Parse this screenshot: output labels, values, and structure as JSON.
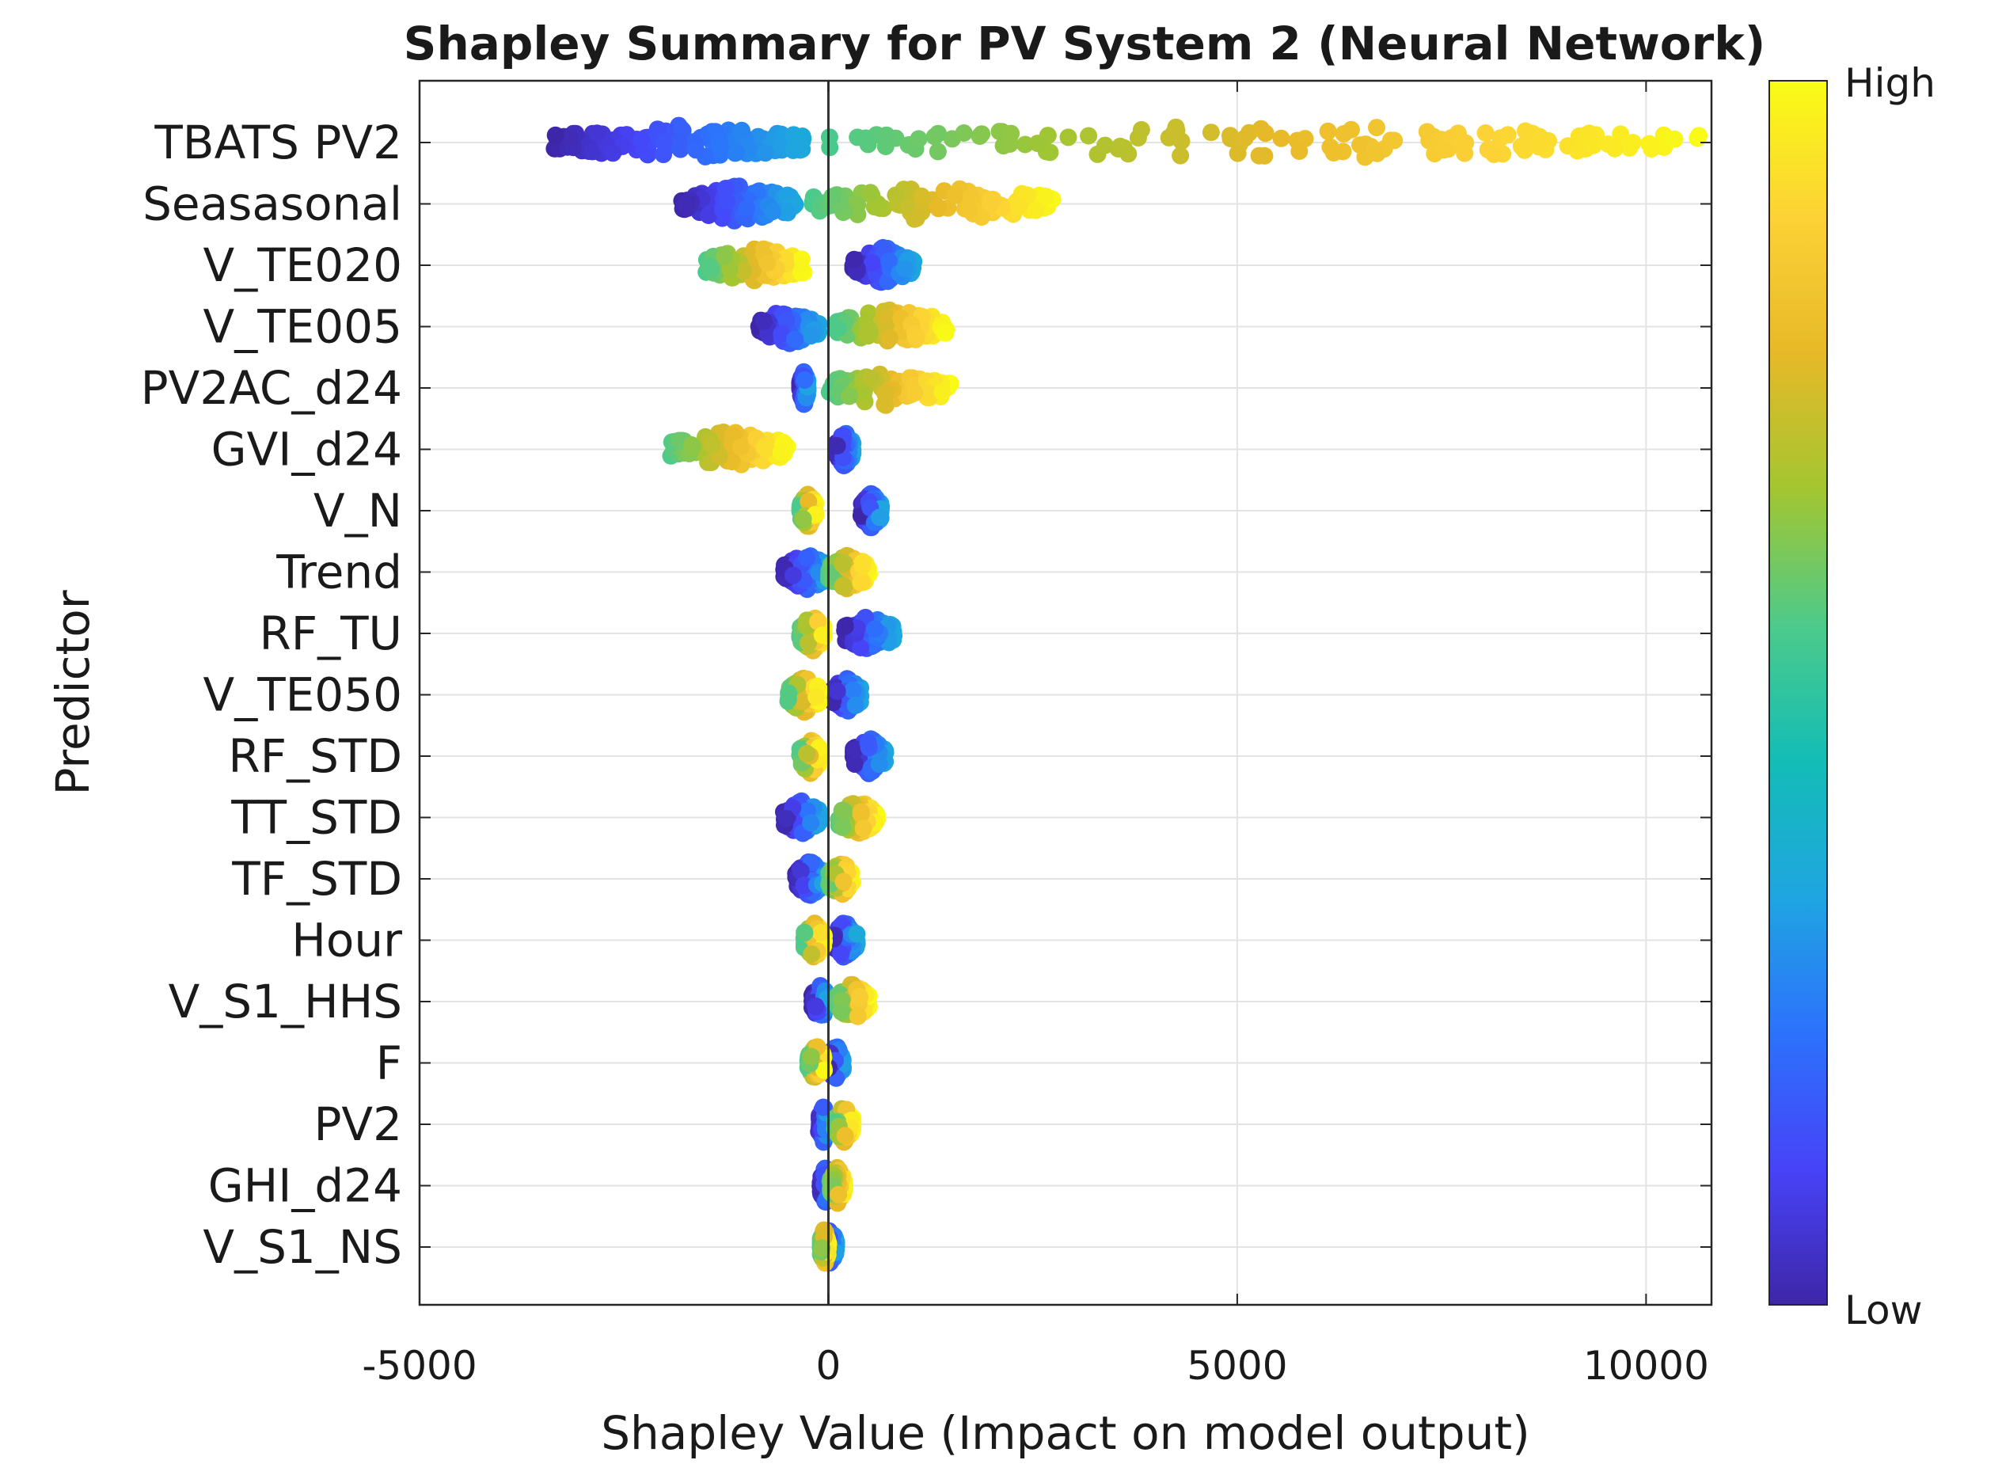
{
  "chart_data": {
    "type": "scatter",
    "subtype": "shapley-beeswarm",
    "title": "Shapley Summary for PV System 2 (Neural Network)",
    "xlabel": "Shapley Value (Impact on model output)",
    "ylabel": "Predictor",
    "xlim": [
      -5000,
      10800
    ],
    "xticks": [
      -5000,
      0,
      5000,
      10000
    ],
    "xtick_labels": [
      "-5000",
      "0",
      "5000",
      "10000"
    ],
    "grid": true,
    "zero_line": 0,
    "colorbar": {
      "high_label": "High",
      "low_label": "Low",
      "colormap": [
        "#3e26a8",
        "#4743f8",
        "#2c72fc",
        "#1fa5e1",
        "#13bdb6",
        "#4dca8a",
        "#a3c631",
        "#e7b928",
        "#fcd236",
        "#f9fb15"
      ]
    },
    "predictors": [
      {
        "name": "TBATS PV2",
        "low_range": [
          -3350,
          -300
        ],
        "high_range": [
          0,
          10700
        ]
      },
      {
        "name": "Seasasonal",
        "low_range": [
          -1800,
          -400
        ],
        "high_range": [
          -200,
          2800
        ]
      },
      {
        "name": "V_TE020",
        "low_range": [
          300,
          1050
        ],
        "high_range": [
          -1500,
          -300
        ]
      },
      {
        "name": "V_TE005",
        "low_range": [
          -850,
          -100
        ],
        "high_range": [
          100,
          1450
        ]
      },
      {
        "name": "PV2AC_d24",
        "low_range": [
          -350,
          -250
        ],
        "high_range": [
          0,
          1500
        ]
      },
      {
        "name": "GVI_d24",
        "low_range": [
          100,
          300
        ],
        "high_range": [
          -1950,
          -500
        ]
      },
      {
        "name": "V_N",
        "low_range": [
          400,
          650
        ],
        "high_range": [
          -350,
          -150
        ]
      },
      {
        "name": "Trend",
        "low_range": [
          -550,
          0
        ],
        "high_range": [
          0,
          500
        ]
      },
      {
        "name": "RF_TU",
        "low_range": [
          200,
          800
        ],
        "high_range": [
          -350,
          -50
        ]
      },
      {
        "name": "V_TE050",
        "low_range": [
          50,
          400
        ],
        "high_range": [
          -500,
          -100
        ]
      },
      {
        "name": "RF_STD",
        "low_range": [
          300,
          700
        ],
        "high_range": [
          -350,
          -100
        ]
      },
      {
        "name": "TT_STD",
        "low_range": [
          -550,
          -100
        ],
        "high_range": [
          100,
          600
        ]
      },
      {
        "name": "TF_STD",
        "low_range": [
          -400,
          -50
        ],
        "high_range": [
          0,
          300
        ]
      },
      {
        "name": "Hour",
        "low_range": [
          50,
          350
        ],
        "high_range": [
          -300,
          -50
        ]
      },
      {
        "name": "V_S1_HHS",
        "low_range": [
          -200,
          0
        ],
        "high_range": [
          100,
          500
        ]
      },
      {
        "name": "F",
        "low_range": [
          0,
          180
        ],
        "high_range": [
          -250,
          -50
        ]
      },
      {
        "name": "PV2",
        "low_range": [
          -120,
          0
        ],
        "high_range": [
          80,
          300
        ]
      },
      {
        "name": "GHI_d24",
        "low_range": [
          -100,
          20
        ],
        "high_range": [
          20,
          200
        ]
      },
      {
        "name": "V_S1_NS",
        "low_range": [
          -60,
          100
        ],
        "high_range": [
          -100,
          0
        ]
      }
    ]
  }
}
